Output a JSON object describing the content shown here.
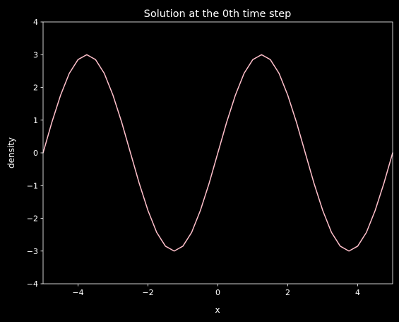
{
  "chart_data": {
    "type": "line",
    "title": "Solution at the 0th time step",
    "xlabel": "x",
    "ylabel": "density",
    "xlim": [
      -5,
      5
    ],
    "ylim": [
      -4,
      4
    ],
    "xticks": [
      -4,
      -2,
      0,
      2,
      4
    ],
    "yticks": [
      -4,
      -3,
      -2,
      -1,
      0,
      1,
      2,
      3,
      4
    ],
    "xtick_labels": [
      "−4",
      "−2",
      "0",
      "2",
      "4"
    ],
    "ytick_labels": [
      "−4",
      "−3",
      "−2",
      "−1",
      "0",
      "1",
      "2",
      "3",
      "4"
    ],
    "grid": false,
    "background_color": "#000000",
    "axis_color": "#ffffff",
    "series": [
      {
        "color": "#ffc0cb",
        "x": [
          -5,
          -4.75,
          -4.5,
          -4.25,
          -4,
          -3.75,
          -3.5,
          -3.25,
          -3,
          -2.75,
          -2.5,
          -2.25,
          -2,
          -1.75,
          -1.5,
          -1.25,
          -1,
          -0.75,
          -0.5,
          -0.25,
          0,
          0.25,
          0.5,
          0.75,
          1,
          1.25,
          1.5,
          1.75,
          2,
          2.25,
          2.5,
          2.75,
          3,
          3.25,
          3.5,
          3.75,
          4,
          4.25,
          4.5,
          4.75,
          5
        ],
        "y": [
          0,
          0.93,
          1.76,
          2.43,
          2.85,
          3,
          2.85,
          2.43,
          1.76,
          0.93,
          0,
          -0.93,
          -1.76,
          -2.43,
          -2.85,
          -3,
          -2.85,
          -2.43,
          -1.76,
          -0.93,
          0,
          0.93,
          1.76,
          2.43,
          2.85,
          3,
          2.85,
          2.43,
          1.76,
          0.93,
          0,
          -0.93,
          -1.76,
          -2.43,
          -2.85,
          -3,
          -2.85,
          -2.43,
          -1.76,
          -0.93,
          0
        ]
      }
    ]
  }
}
